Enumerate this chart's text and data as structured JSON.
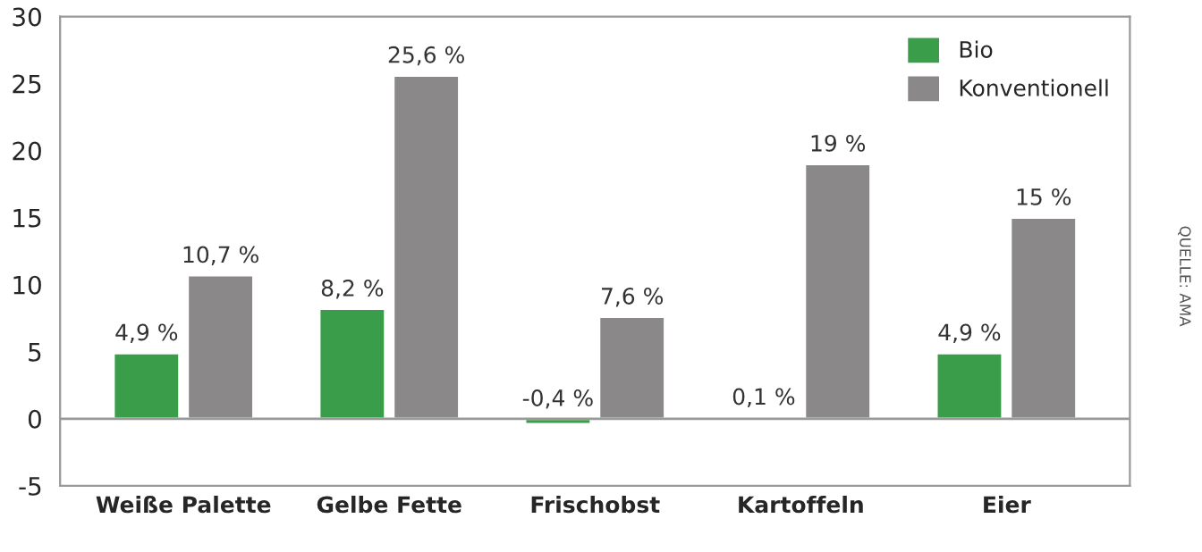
{
  "chart_data": {
    "type": "bar",
    "categories": [
      "Weiße Palette",
      "Gelbe Fette",
      "Frischobst",
      "Kartoffeln",
      "Eier"
    ],
    "series": [
      {
        "name": "Bio",
        "color": "#3a9d4a",
        "values": [
          4.9,
          8.2,
          -0.4,
          0.1,
          4.9
        ],
        "value_labels": [
          "4,9 %",
          "8,2 %",
          "-0,4 %",
          "0,1 %",
          "4,9 %"
        ]
      },
      {
        "name": "Konventionell",
        "color": "#8a8888",
        "values": [
          10.7,
          25.6,
          7.6,
          19,
          15
        ],
        "value_labels": [
          "10,7 %",
          "25,6 %",
          "7,6 %",
          "19 %",
          "15 %"
        ]
      }
    ],
    "ylim": [
      -5,
      30
    ],
    "yticks": [
      -5,
      0,
      5,
      10,
      15,
      20,
      25,
      30
    ],
    "grid": false,
    "ref_lines": [
      {
        "axis": "y",
        "value": 0,
        "color": "#999999"
      }
    ],
    "legend": "top right",
    "annotations": [
      "QUELLE: AMA"
    ]
  }
}
